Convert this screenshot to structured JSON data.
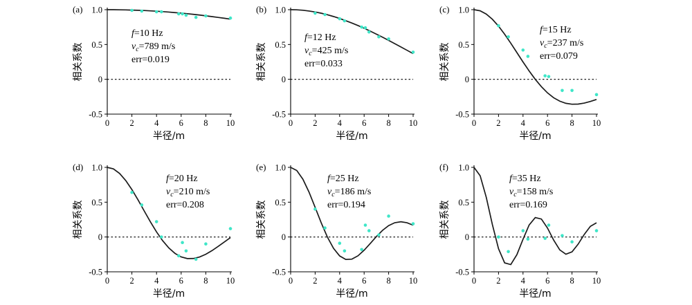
{
  "axis_titles": {
    "x": "半径/m",
    "y": "相关系数"
  },
  "chart_data": [
    {
      "type": "scatter",
      "panel_label": "(a)",
      "xlabel": "半径/m",
      "ylabel": "相关系数",
      "xlim": [
        0,
        10
      ],
      "ylim": [
        -0.5,
        1.0
      ],
      "x_ticks": [
        0,
        2,
        4,
        6,
        8,
        10
      ],
      "x_tick_labels": [
        "0",
        "2",
        "4",
        "6",
        "8",
        "10"
      ],
      "y_ticks": [
        -0.5,
        0,
        0.5,
        1.0
      ],
      "y_tick_labels": [
        "-0.5",
        "0",
        "0.5",
        "1.0"
      ],
      "annotation": {
        "f_var": "f",
        "f_value": "=10 Hz",
        "vc_var": "v",
        "vc_sub": "c",
        "vc_value": "=789 m/s",
        "err": "err=0.019"
      },
      "model": {
        "f": 10,
        "vc": 789,
        "note": ""
      },
      "points": {
        "x": [
          2,
          2.8,
          4,
          4.4,
          5.8,
          6.1,
          6.4,
          7.2,
          8,
          10
        ],
        "y": [
          0.99,
          0.98,
          0.97,
          0.97,
          0.94,
          0.94,
          0.92,
          0.89,
          0.91,
          0.88
        ]
      },
      "curve": {
        "x": [
          0,
          0.5,
          1,
          1.5,
          2,
          2.5,
          3,
          3.5,
          4,
          4.5,
          5,
          5.5,
          6,
          6.5,
          7,
          7.5,
          8,
          8.5,
          9,
          9.5,
          10
        ],
        "y": [
          1.0,
          1.0,
          0.998,
          0.997,
          0.994,
          0.991,
          0.988,
          0.983,
          0.978,
          0.972,
          0.966,
          0.958,
          0.951,
          0.942,
          0.933,
          0.923,
          0.912,
          0.901,
          0.889,
          0.877,
          0.864
        ]
      }
    },
    {
      "type": "scatter",
      "panel_label": "(b)",
      "xlabel": "半径/m",
      "ylabel": "相关系数",
      "xlim": [
        0,
        10
      ],
      "ylim": [
        -0.5,
        1.0
      ],
      "x_ticks": [
        0,
        2,
        4,
        6,
        8,
        10
      ],
      "x_tick_labels": [
        "0",
        "2",
        "4",
        "6",
        "8",
        "10"
      ],
      "y_ticks": [
        -0.5,
        0,
        0.5,
        1.0
      ],
      "y_tick_labels": [
        "-0.5",
        "0",
        "0.5",
        "1.0"
      ],
      "annotation": {
        "f_var": "f",
        "f_value": "=12 Hz",
        "vc_var": "v",
        "vc_sub": "c",
        "vc_value": "=425 m/s",
        "err": "err=0.033"
      },
      "model": {
        "f": 12,
        "vc": 425,
        "note": ""
      },
      "points": {
        "x": [
          2,
          2.8,
          4,
          4.4,
          5.8,
          6.1,
          6.4,
          7.2,
          8,
          10
        ],
        "y": [
          0.95,
          0.93,
          0.87,
          0.84,
          0.75,
          0.74,
          0.68,
          0.61,
          0.58,
          0.39
        ]
      },
      "curve": {
        "x": [
          0,
          0.5,
          1,
          1.5,
          2,
          2.5,
          3,
          3.5,
          4,
          4.5,
          5,
          5.5,
          6,
          6.5,
          7,
          7.5,
          8,
          8.5,
          9,
          9.5,
          10
        ],
        "y": [
          1.0,
          0.998,
          0.992,
          0.981,
          0.967,
          0.949,
          0.927,
          0.902,
          0.874,
          0.842,
          0.808,
          0.772,
          0.733,
          0.692,
          0.649,
          0.605,
          0.559,
          0.512,
          0.465,
          0.417,
          0.369
        ]
      }
    },
    {
      "type": "scatter",
      "panel_label": "(c)",
      "xlabel": "半径/m",
      "ylabel": "相关系数",
      "xlim": [
        0,
        10
      ],
      "ylim": [
        -0.5,
        1.0
      ],
      "x_ticks": [
        0,
        2,
        4,
        6,
        8,
        10
      ],
      "x_tick_labels": [
        "0",
        "2",
        "4",
        "6",
        "8",
        "10"
      ],
      "y_ticks": [
        -0.5,
        0,
        0.5,
        1.0
      ],
      "y_tick_labels": [
        "-0.5",
        "0",
        "0.5",
        "1.0"
      ],
      "annotation": {
        "f_var": "f",
        "f_value": "=15 Hz",
        "vc_var": "v",
        "vc_sub": "c",
        "vc_value": "=237 m/s",
        "err": "err=0.079"
      },
      "model": {
        "f": 15,
        "vc": 237,
        "note": ""
      },
      "points": {
        "x": [
          2,
          2.8,
          4,
          4.4,
          5.8,
          6.1,
          7.2,
          8,
          10
        ],
        "y": [
          0.77,
          0.61,
          0.42,
          0.33,
          0.05,
          0.04,
          -0.16,
          -0.16,
          -0.22
        ]
      },
      "curve": {
        "x": [
          0,
          0.5,
          1,
          1.5,
          2,
          2.5,
          3,
          3.5,
          4,
          4.5,
          5,
          5.5,
          6,
          6.5,
          7,
          7.5,
          8,
          8.5,
          9,
          9.5,
          10
        ],
        "y": [
          1.0,
          0.984,
          0.937,
          0.862,
          0.764,
          0.647,
          0.519,
          0.384,
          0.249,
          0.12,
          0.0,
          -0.106,
          -0.195,
          -0.265,
          -0.314,
          -0.345,
          -0.358,
          -0.356,
          -0.342,
          -0.318,
          -0.289
        ]
      }
    },
    {
      "type": "scatter",
      "panel_label": "(d)",
      "xlabel": "半径/m",
      "ylabel": "相关系数",
      "xlim": [
        0,
        10
      ],
      "ylim": [
        -0.5,
        1.0
      ],
      "x_ticks": [
        0,
        2,
        4,
        6,
        8,
        10
      ],
      "x_tick_labels": [
        "0",
        "2",
        "4",
        "6",
        "8",
        "10"
      ],
      "y_ticks": [
        -0.5,
        0,
        0.5,
        1.0
      ],
      "y_tick_labels": [
        "-0.5",
        "0",
        "0.5",
        "1.0"
      ],
      "annotation": {
        "f_var": "f",
        "f_value": "=20 Hz",
        "vc_var": "v",
        "vc_sub": "c",
        "vc_value": "=210 m/s",
        "err": "err=0.208"
      },
      "model": {
        "f": 20,
        "vc": 210,
        "note": ""
      },
      "points": {
        "x": [
          2,
          2.8,
          4,
          4.4,
          5.8,
          6.1,
          6.4,
          7.2,
          8,
          10
        ],
        "y": [
          0.64,
          0.46,
          0.22,
          0.0,
          -0.27,
          -0.08,
          -0.2,
          -0.32,
          -0.1,
          0.12
        ]
      },
      "curve": {
        "x": [
          0,
          0.5,
          1,
          1.5,
          2,
          2.5,
          3,
          3.5,
          4,
          4.5,
          5,
          5.5,
          6,
          6.5,
          7,
          7.5,
          8,
          8.5,
          9,
          9.5,
          10
        ],
        "y": [
          1.0,
          0.978,
          0.913,
          0.811,
          0.681,
          0.532,
          0.374,
          0.218,
          0.073,
          -0.054,
          -0.158,
          -0.236,
          -0.286,
          -0.31,
          -0.309,
          -0.287,
          -0.248,
          -0.196,
          -0.136,
          -0.072,
          -0.009
        ]
      }
    },
    {
      "type": "scatter",
      "panel_label": "(e)",
      "xlabel": "半径/m",
      "ylabel": "相关系数",
      "xlim": [
        0,
        10
      ],
      "ylim": [
        -0.5,
        1.0
      ],
      "x_ticks": [
        0,
        2,
        4,
        6,
        8,
        10
      ],
      "x_tick_labels": [
        "0",
        "2",
        "4",
        "6",
        "8",
        "10"
      ],
      "y_ticks": [
        -0.5,
        0,
        0.5,
        1.0
      ],
      "y_tick_labels": [
        "-0.5",
        "0",
        "0.5",
        "1.0"
      ],
      "annotation": {
        "f_var": "f",
        "f_value": "=25 Hz",
        "vc_var": "v",
        "vc_sub": "c",
        "vc_value": "=186 m/s",
        "err": "err=0.194"
      },
      "model": {
        "f": 25,
        "vc": 186,
        "note": ""
      },
      "points": {
        "x": [
          2,
          2.8,
          4,
          4.4,
          5.8,
          6.1,
          6.4,
          7.2,
          8,
          10
        ],
        "y": [
          0.4,
          0.13,
          -0.09,
          -0.2,
          -0.18,
          0.17,
          0.09,
          0.03,
          0.3,
          0.19
        ]
      },
      "curve": {
        "x": [
          0,
          0.5,
          1,
          1.5,
          2,
          2.5,
          3,
          3.5,
          4,
          4.5,
          5,
          5.5,
          6,
          6.5,
          7,
          7.5,
          8,
          8.5,
          9,
          9.5,
          10
        ],
        "y": [
          1.0,
          0.955,
          0.83,
          0.645,
          0.426,
          0.202,
          -0.001,
          -0.163,
          -0.272,
          -0.322,
          -0.318,
          -0.27,
          -0.19,
          -0.093,
          0.006,
          0.095,
          0.163,
          0.205,
          0.219,
          0.205,
          0.169
        ]
      }
    },
    {
      "type": "scatter",
      "panel_label": "(f)",
      "xlabel": "半径/m",
      "ylabel": "相关系数",
      "xlim": [
        0,
        10
      ],
      "ylim": [
        -0.5,
        1.0
      ],
      "x_ticks": [
        0,
        2,
        4,
        6,
        8,
        10
      ],
      "x_tick_labels": [
        "0",
        "2",
        "4",
        "6",
        "8",
        "10"
      ],
      "y_ticks": [
        -0.5,
        0,
        0.5,
        1.0
      ],
      "y_tick_labels": [
        "-0.5",
        "0",
        "0.5",
        "1.0"
      ],
      "annotation": {
        "f_var": "f",
        "f_value": "=35 Hz",
        "vc_var": "v",
        "vc_sub": "c",
        "vc_value": "=158 m/s",
        "err": "err=0.169"
      },
      "model": {
        "f": 35,
        "vc": 158,
        "note": ""
      },
      "points": {
        "x": [
          2,
          2.8,
          4,
          4.4,
          5.8,
          6.1,
          7.2,
          8,
          10
        ],
        "y": [
          0.0,
          -0.21,
          0.09,
          -0.03,
          -0.02,
          0.17,
          0.02,
          -0.07,
          0.09
        ]
      },
      "curve": {
        "x": [
          0,
          0.5,
          1,
          1.5,
          2,
          2.5,
          3,
          3.5,
          4,
          4.5,
          5,
          5.5,
          6,
          6.5,
          7,
          7.5,
          8,
          8.5,
          9,
          9.5,
          10
        ],
        "y": [
          1.0,
          0.88,
          0.57,
          0.177,
          -0.168,
          -0.372,
          -0.396,
          -0.254,
          -0.032,
          0.172,
          0.279,
          0.258,
          0.128,
          -0.044,
          -0.185,
          -0.247,
          -0.213,
          -0.103,
          0.037,
          0.153,
          0.204
        ]
      }
    }
  ]
}
